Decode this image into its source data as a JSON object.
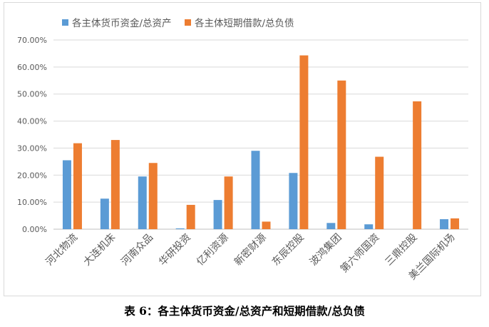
{
  "chart_data": {
    "type": "bar",
    "categories": [
      "河北物流",
      "大连机床",
      "河南众品",
      "华研投资",
      "亿利资源",
      "新密财源",
      "东辰控股",
      "波鸿集团",
      "第六师国资",
      "三鼎控股",
      "美兰国际机场"
    ],
    "series": [
      {
        "name": "各主体货币资金/总资产",
        "color": "#5b9bd5",
        "values": [
          25.5,
          11.3,
          19.5,
          0.3,
          10.8,
          29.0,
          20.8,
          2.3,
          1.8,
          0,
          3.7
        ]
      },
      {
        "name": "各主体短期借款/总负债",
        "color": "#ed7d31",
        "values": [
          31.8,
          33.0,
          24.5,
          9.0,
          19.5,
          2.8,
          64.3,
          55.0,
          26.8,
          47.3,
          4.0
        ]
      }
    ],
    "ylim": [
      0,
      70
    ],
    "yticks": [
      "0.00%",
      "10.00%",
      "20.00%",
      "30.00%",
      "40.00%",
      "50.00%",
      "60.00%",
      "70.00%"
    ],
    "grid": true,
    "legend_position": "top-left"
  },
  "caption": "表 6：各主体货币资金/总资产和短期借款/总负债"
}
